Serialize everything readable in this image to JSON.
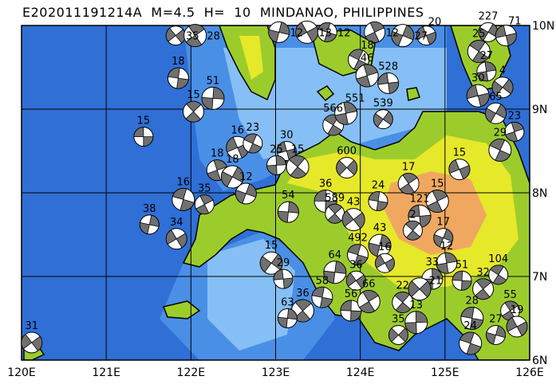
{
  "title": "E202011191214A  M=4.5  H=  10  MINDANAO, PHILIPPINES",
  "map": {
    "lon_range": [
      120,
      126
    ],
    "lat_range": [
      6,
      10
    ],
    "lon_labels": [
      "120E",
      "121E",
      "122E",
      "123E",
      "124E",
      "125E",
      "126E"
    ],
    "lat_labels": [
      "6N",
      "7N",
      "8N",
      "9N",
      "10N"
    ],
    "colors": {
      "deep_ocean": "#2f6fd6",
      "ocean": "#4a8fe6",
      "shallow": "#86bff5",
      "lowland": "#9ccc2c",
      "upland": "#e6e82a",
      "highland": "#f0a860",
      "beachball_fill": "#707070"
    }
  },
  "events": [
    {
      "lon": 121.44,
      "lat": 8.67,
      "depth": "15"
    },
    {
      "lon": 122.03,
      "lat": 8.97,
      "depth": "15"
    },
    {
      "lon": 122.26,
      "lat": 9.13,
      "depth": "51"
    },
    {
      "lon": 121.82,
      "lat": 9.88,
      "depth": "35"
    },
    {
      "lon": 121.85,
      "lat": 9.37,
      "depth": "18"
    },
    {
      "lon": 122.05,
      "lat": 9.88,
      "depth": "28"
    },
    {
      "lon": 121.51,
      "lat": 7.62,
      "depth": "38"
    },
    {
      "lon": 121.83,
      "lat": 7.45,
      "depth": "34"
    },
    {
      "lon": 121.91,
      "lat": 7.92,
      "depth": "16"
    },
    {
      "lon": 122.16,
      "lat": 7.86,
      "depth": "35"
    },
    {
      "lon": 122.65,
      "lat": 7.99,
      "depth": "12"
    },
    {
      "lon": 122.55,
      "lat": 8.54,
      "depth": "16"
    },
    {
      "lon": 122.73,
      "lat": 8.59,
      "depth": "23"
    },
    {
      "lon": 122.31,
      "lat": 8.27,
      "depth": "18"
    },
    {
      "lon": 122.49,
      "lat": 8.19,
      "depth": "18"
    },
    {
      "lon": 123.13,
      "lat": 8.5,
      "depth": "30"
    },
    {
      "lon": 123.68,
      "lat": 8.81,
      "depth": "566"
    },
    {
      "lon": 123.83,
      "lat": 8.95,
      "depth": "551"
    },
    {
      "lon": 124.27,
      "lat": 8.88,
      "depth": "539"
    },
    {
      "lon": 124.33,
      "lat": 9.31,
      "depth": "528"
    },
    {
      "lon": 123.26,
      "lat": 8.31,
      "depth": "15"
    },
    {
      "lon": 123.01,
      "lat": 8.33,
      "depth": "25"
    },
    {
      "lon": 123.84,
      "lat": 8.3,
      "depth": "600"
    },
    {
      "lon": 123.59,
      "lat": 7.9,
      "depth": "36"
    },
    {
      "lon": 123.7,
      "lat": 7.75,
      "depth": "589"
    },
    {
      "lon": 123.15,
      "lat": 7.77,
      "depth": "54"
    },
    {
      "lon": 123.92,
      "lat": 7.68,
      "depth": "43"
    },
    {
      "lon": 124.21,
      "lat": 7.9,
      "depth": "24"
    },
    {
      "lon": 124.57,
      "lat": 8.11,
      "depth": "17"
    },
    {
      "lon": 124.23,
      "lat": 7.37,
      "depth": "43"
    },
    {
      "lon": 124.29,
      "lat": 7.16,
      "depth": "16"
    },
    {
      "lon": 123.97,
      "lat": 7.26,
      "depth": "492"
    },
    {
      "lon": 124.91,
      "lat": 7.9,
      "depth": "15"
    },
    {
      "lon": 124.98,
      "lat": 7.46,
      "depth": "17"
    },
    {
      "lon": 125.17,
      "lat": 8.28,
      "depth": "15"
    },
    {
      "lon": 125.65,
      "lat": 8.51,
      "depth": "29"
    },
    {
      "lon": 125.82,
      "lat": 8.73,
      "depth": "23"
    },
    {
      "lon": 125.6,
      "lat": 8.95,
      "depth": "65"
    },
    {
      "lon": 125.39,
      "lat": 9.16,
      "depth": "30"
    },
    {
      "lon": 125.63,
      "lat": 7.02,
      "depth": "104"
    },
    {
      "lon": 125.02,
      "lat": 7.16,
      "depth": "12"
    },
    {
      "lon": 122.95,
      "lat": 7.16,
      "depth": "15"
    },
    {
      "lon": 123.09,
      "lat": 6.97,
      "depth": "29"
    },
    {
      "lon": 124.5,
      "lat": 6.69,
      "depth": "22"
    },
    {
      "lon": 124.66,
      "lat": 6.45,
      "depth": "13"
    },
    {
      "lon": 124.45,
      "lat": 6.3,
      "depth": "35"
    },
    {
      "lon": 123.89,
      "lat": 6.59,
      "depth": "56"
    },
    {
      "lon": 123.32,
      "lat": 6.59,
      "depth": "36"
    },
    {
      "lon": 123.14,
      "lat": 6.5,
      "depth": "63"
    },
    {
      "lon": 120.12,
      "lat": 6.21,
      "depth": "31"
    },
    {
      "lon": 125.32,
      "lat": 6.5,
      "depth": "28"
    },
    {
      "lon": 125.77,
      "lat": 6.59,
      "depth": "55"
    },
    {
      "lon": 123.04,
      "lat": 9.92,
      "depth": "12"
    },
    {
      "lon": 123.37,
      "lat": 9.92,
      "depth": "13"
    },
    {
      "lon": 123.61,
      "lat": 9.92,
      "depth": "12"
    },
    {
      "lon": 124.17,
      "lat": 9.92,
      "depth": "12"
    },
    {
      "lon": 124.5,
      "lat": 9.88,
      "depth": "27"
    },
    {
      "lon": 124.78,
      "lat": 9.88,
      "depth": "20"
    },
    {
      "lon": 123.98,
      "lat": 9.59,
      "depth": "18"
    },
    {
      "lon": 124.08,
      "lat": 9.4,
      "depth": "46"
    },
    {
      "lon": 125.51,
      "lat": 9.92,
      "depth": "227"
    },
    {
      "lon": 125.72,
      "lat": 9.88,
      "depth": "71"
    },
    {
      "lon": 125.4,
      "lat": 9.69,
      "depth": "25"
    },
    {
      "lon": 125.49,
      "lat": 9.45,
      "depth": "27"
    },
    {
      "lon": 125.68,
      "lat": 9.26,
      "depth": "4"
    },
    {
      "lon": 124.7,
      "lat": 7.72,
      "depth": "121"
    },
    {
      "lon": 124.62,
      "lat": 7.55,
      "depth": "2"
    },
    {
      "lon": 124.85,
      "lat": 6.97,
      "depth": "33"
    },
    {
      "lon": 124.7,
      "lat": 6.85,
      "depth": "21"
    },
    {
      "lon": 125.2,
      "lat": 6.95,
      "depth": "51"
    },
    {
      "lon": 125.45,
      "lat": 6.85,
      "depth": "32"
    },
    {
      "lon": 123.7,
      "lat": 7.05,
      "depth": "64"
    },
    {
      "lon": 123.95,
      "lat": 6.95,
      "depth": "36"
    },
    {
      "lon": 123.55,
      "lat": 6.75,
      "depth": "58"
    },
    {
      "lon": 124.1,
      "lat": 6.7,
      "depth": "66"
    },
    {
      "lon": 125.6,
      "lat": 6.3,
      "depth": "27"
    },
    {
      "lon": 125.85,
      "lat": 6.4,
      "depth": "19"
    },
    {
      "lon": 125.3,
      "lat": 6.2,
      "depth": "24"
    }
  ]
}
